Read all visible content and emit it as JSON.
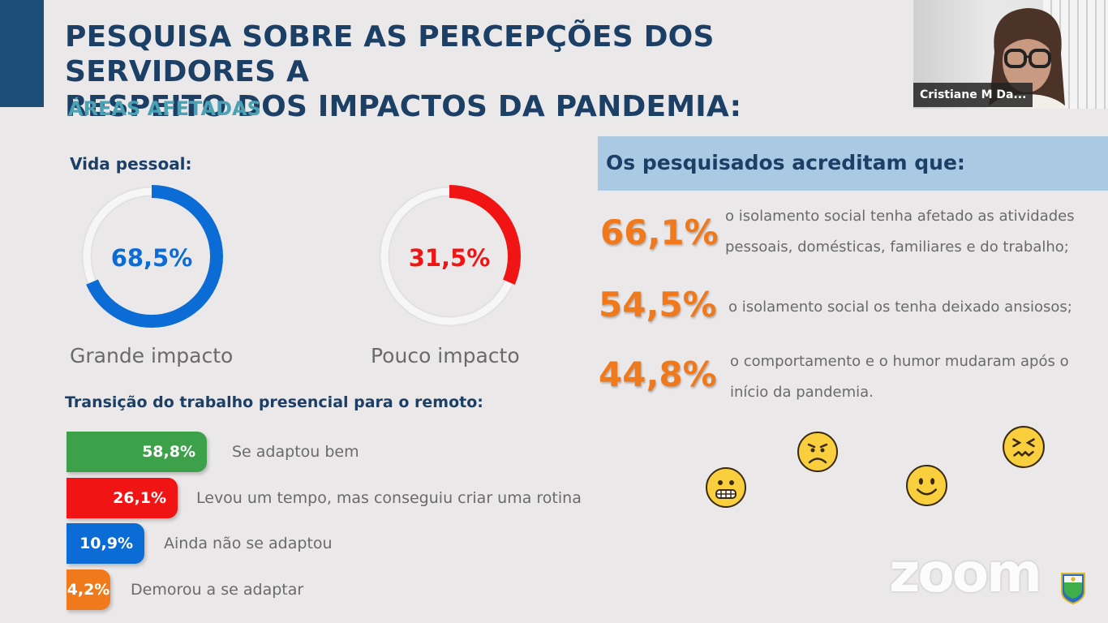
{
  "slide": {
    "title_line1": "PESQUISA SOBRE AS PERCEPÇÕES DOS SERVIDORES A",
    "title_line2": "RESPEITO DOS IMPACTOS DA PANDEMIA:",
    "subtitle": "ÁREAS AFETADAS"
  },
  "participant": {
    "name": "Cristiane M Da..."
  },
  "vida_pessoal": {
    "label": "Vida pessoal:",
    "donuts": [
      {
        "value_label": "68,5%",
        "value": 68.5,
        "caption": "Grande impacto",
        "color": "#0a6cd4"
      },
      {
        "value_label": "31,5%",
        "value": 31.5,
        "caption": "Pouco impacto",
        "color": "#f01414"
      }
    ]
  },
  "transicao": {
    "label": "Transição do trabalho presencial para o remoto:",
    "bars": [
      {
        "value_label": "58,8%",
        "value": 58.8,
        "text": "Se adaptou bem",
        "color": "#3da14a"
      },
      {
        "value_label": "26,1%",
        "value": 26.1,
        "text": "Levou um tempo, mas conseguiu criar uma rotina",
        "color": "#f01414"
      },
      {
        "value_label": "10,9%",
        "value": 10.9,
        "text": "Ainda não se adaptou",
        "color": "#0a6cd4"
      },
      {
        "value_label": "4,2%",
        "value": 4.2,
        "text": "Demorou a se adaptar",
        "color": "#f07a1b"
      }
    ]
  },
  "crencas": {
    "header": "Os pesquisados acreditam que:",
    "items": [
      {
        "pct": "66,1%",
        "line1": "o isolamento social tenha afetado as atividades",
        "line2": "pessoais, domésticas, familiares e do trabalho;"
      },
      {
        "pct": "54,5%",
        "line1": "o isolamento social os tenha deixado ansiosos;",
        "line2": ""
      },
      {
        "pct": "44,8%",
        "line1": "o comportamento e o humor mudaram após o",
        "line2": "início da pandemia."
      }
    ]
  },
  "emojis": [
    "grimace-emoji",
    "sad-emoji",
    "smile-emoji",
    "confounded-emoji"
  ],
  "branding": {
    "logo_text": "zoom"
  },
  "colors": {
    "navy": "#1c3f66",
    "teal": "#4aa3b5",
    "orange": "#f07a1b",
    "header_bg": "#aac9e3"
  }
}
